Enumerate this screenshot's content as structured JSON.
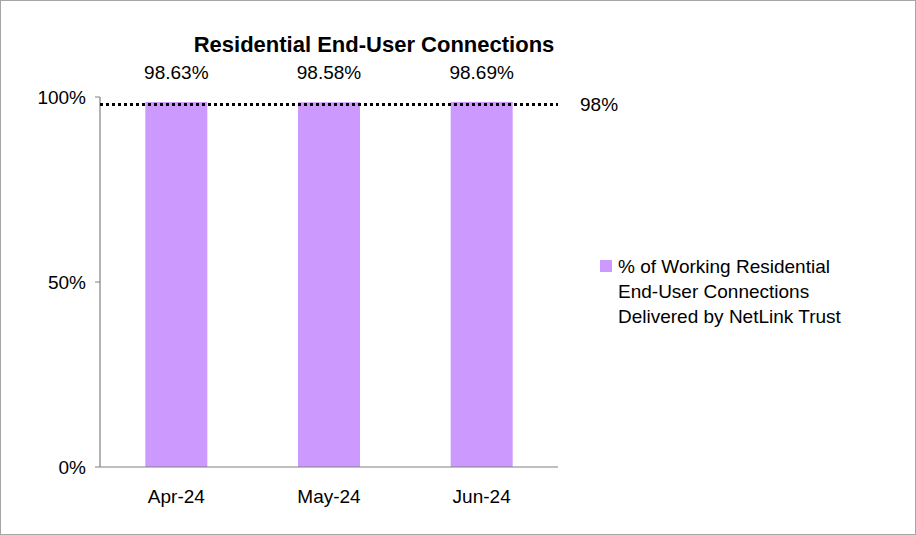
{
  "chart_data": {
    "type": "bar",
    "title": "Residential End-User Connections",
    "categories": [
      "Apr-24",
      "May-24",
      "Jun-24"
    ],
    "series": [
      {
        "name": "% of Working Residential End-User Connections Delivered by NetLink Trust",
        "color": "#cc99ff",
        "values": [
          98.63,
          98.58,
          98.69
        ],
        "value_labels": [
          "98.63%",
          "98.58%",
          "98.69%"
        ]
      }
    ],
    "ylim": [
      0,
      100
    ],
    "yticks": [
      {
        "value": 0,
        "label": "0%"
      },
      {
        "value": 50,
        "label": "50%"
      },
      {
        "value": 100,
        "label": "100%"
      }
    ],
    "grid": false,
    "data_labels": true,
    "legend": "right",
    "reference_line": {
      "value": 98,
      "label": "98%",
      "line_style": "dotted"
    }
  }
}
